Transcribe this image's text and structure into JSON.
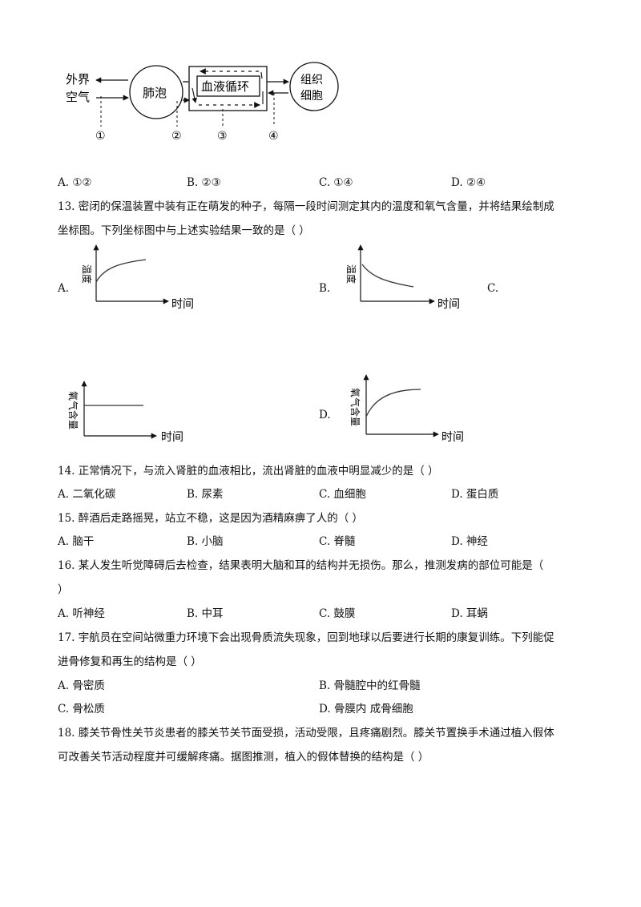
{
  "diagram": {
    "outside_air_line1": "外界",
    "outside_air_line2": "空气",
    "alveoli": "肺泡",
    "blood_circulation": "血液循环",
    "tissue_cell_line1": "组织",
    "tissue_cell_line2": "细胞",
    "markers": [
      "①",
      "②",
      "③",
      "④"
    ]
  },
  "q12": {
    "options": [
      "A.  ①②",
      "B.  ②③",
      "C.  ①④",
      "D.  ②④"
    ]
  },
  "q13": {
    "stem_line1": "13. 密闭的保温装置中装有正在萌发的种子，每隔一段时间测定其内的温度和氧气含量，并将结果绘制成",
    "stem_line2": "坐标图。下列坐标图中与上述实验结果一致的是（        ）",
    "option_labels": [
      "A.",
      "B.",
      "C.",
      "D."
    ],
    "graph_a": {
      "ylabel": "温度",
      "xlabel": "时间"
    },
    "graph_b": {
      "ylabel": "温度",
      "xlabel": "时间"
    },
    "graph_c": {
      "ylabel": "氧气含量",
      "xlabel": "时间"
    },
    "graph_d": {
      "ylabel": "氧气含量",
      "xlabel": "时间"
    }
  },
  "q14": {
    "stem": "14. 正常情况下，与流入肾脏的血液相比，流出肾脏的血液中明显减少的是（        ）",
    "options": [
      "A. 二氧化碳",
      "B. 尿素",
      "C. 血细胞",
      "D. 蛋白质"
    ]
  },
  "q15": {
    "stem": "15. 醉酒后走路摇晃，站立不稳，这是因为酒精麻痹了人的（        ）",
    "options": [
      "A.  脑干",
      "B.  小脑",
      "C.  脊髓",
      "D.  神经"
    ]
  },
  "q16": {
    "stem_line1": "16. 某人发生听觉障碍后去检查，结果表明大脑和耳的结构并无损伤。那么，推测发病的部位可能是（",
    "stem_line2": "）",
    "options": [
      "A.  听神经",
      "B.  中耳",
      "C.  鼓膜",
      "D.  耳蜗"
    ]
  },
  "q17": {
    "stem_line1": "17. 宇航员在空间站微重力环境下会出现骨质流失现象，回到地球以后要进行长期的康复训练。下列能促",
    "stem_line2": "进骨修复和再生的结构是（        ）",
    "options": [
      "A.  骨密质",
      "B.  骨髓腔中的红骨髓",
      "C.  骨松质",
      "D.  骨膜内    成骨细胞"
    ]
  },
  "q18": {
    "stem_line1": "18. 膝关节骨性关节炎患者的膝关节关节面受损，活动受限，且疼痛剧烈。膝关节置换手术通过植入假体",
    "stem_line2": "可改善关节活动程度并可缓解疼痛。据图推测，植入的假体替换的结构是（        ）"
  }
}
